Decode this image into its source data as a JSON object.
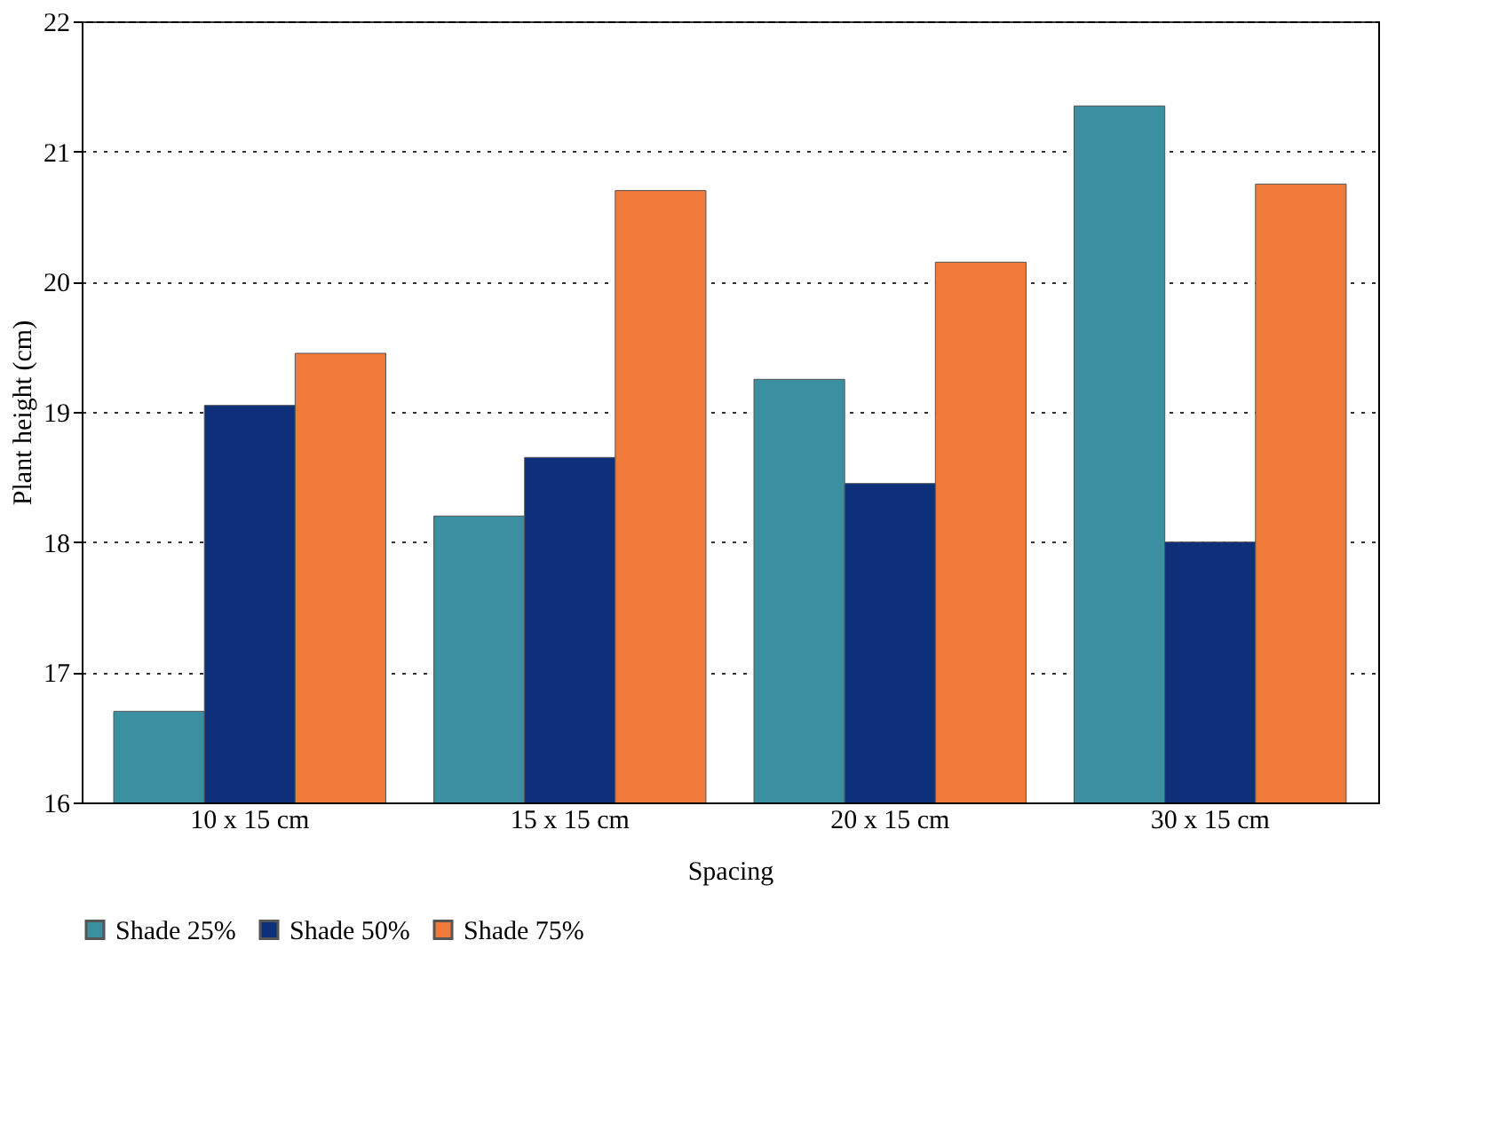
{
  "chart_data": {
    "type": "bar",
    "xlabel": "Spacing",
    "ylabel": "Plant height (cm)",
    "categories": [
      "10 x 15 cm",
      "15 x 15 cm",
      "20 x 15 cm",
      "30 x 15 cm"
    ],
    "series": [
      {
        "name": "Shade 25%",
        "color": "#3a8fa0",
        "values": [
          16.7,
          18.2,
          19.25,
          21.35
        ]
      },
      {
        "name": "Shade 50%",
        "color": "#0e2f7a",
        "values": [
          19.05,
          18.65,
          18.45,
          18.0
        ]
      },
      {
        "name": "Shade 75%",
        "color": "#f07a3a",
        "values": [
          19.45,
          20.7,
          20.15,
          20.75
        ]
      }
    ],
    "ylim": [
      16,
      22
    ],
    "yticks": [
      16,
      17,
      18,
      19,
      20,
      21,
      22
    ],
    "grid": "y",
    "legend": "bottom"
  }
}
